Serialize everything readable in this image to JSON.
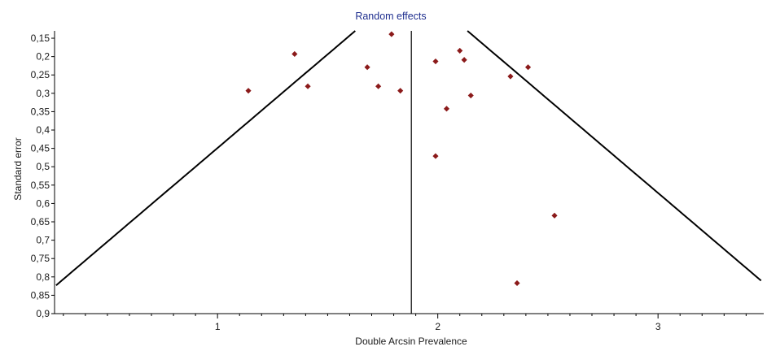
{
  "chart_data": {
    "type": "scatter",
    "title": "Random effects",
    "xlabel": "Double Arcsin Prevalence",
    "ylabel": "Standard error",
    "xlim": [
      0.26,
      3.48
    ],
    "ylim": [
      0.13,
      0.9
    ],
    "y_inverted": true,
    "x_ticks": [
      1,
      2,
      3
    ],
    "x_tick_labels": [
      "1",
      "2",
      "3"
    ],
    "y_ticks": [
      0.15,
      0.2,
      0.25,
      0.3,
      0.35,
      0.4,
      0.45,
      0.5,
      0.55,
      0.6,
      0.65,
      0.7,
      0.75,
      0.8,
      0.85,
      0.9
    ],
    "y_tick_labels": [
      "0,15",
      "0,2",
      "0,25",
      "0,3",
      "0,35",
      "0,4",
      "0,45",
      "0,5",
      "0,55",
      "0,6",
      "0,65",
      "0,7",
      "0,75",
      "0,8",
      "0,85",
      "0,9"
    ],
    "grid": false,
    "pooled_estimate": 1.88,
    "points": [
      {
        "x": 1.14,
        "y": 0.293
      },
      {
        "x": 1.35,
        "y": 0.193
      },
      {
        "x": 1.41,
        "y": 0.281
      },
      {
        "x": 1.68,
        "y": 0.229
      },
      {
        "x": 1.73,
        "y": 0.281
      },
      {
        "x": 1.79,
        "y": 0.139
      },
      {
        "x": 1.83,
        "y": 0.293
      },
      {
        "x": 1.99,
        "y": 0.213
      },
      {
        "x": 1.99,
        "y": 0.471
      },
      {
        "x": 2.04,
        "y": 0.342
      },
      {
        "x": 2.1,
        "y": 0.184
      },
      {
        "x": 2.12,
        "y": 0.209
      },
      {
        "x": 2.15,
        "y": 0.306
      },
      {
        "x": 2.33,
        "y": 0.254
      },
      {
        "x": 2.36,
        "y": 0.817
      },
      {
        "x": 2.41,
        "y": 0.229
      },
      {
        "x": 2.53,
        "y": 0.633
      }
    ],
    "colors": {
      "point": "#8b1a1a",
      "lines": "#000000",
      "title": "#1f2f8f",
      "text": "#1a1a1a"
    }
  }
}
